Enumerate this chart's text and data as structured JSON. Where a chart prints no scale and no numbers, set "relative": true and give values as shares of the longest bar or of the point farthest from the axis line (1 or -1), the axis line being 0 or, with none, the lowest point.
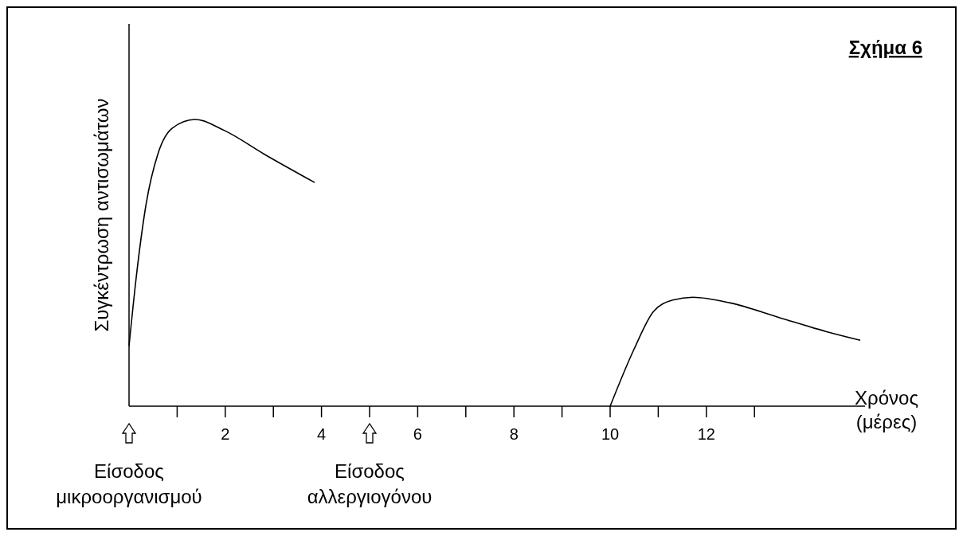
{
  "chart_data": {
    "type": "line",
    "title": "Σχήμα 6",
    "ylabel": "Συγκέντρωση αντισωμάτων",
    "xlabel": "Χρόνος (μέρες)",
    "relative": true,
    "xlim": [
      0,
      15.3
    ],
    "xticks": [
      {
        "value": 1,
        "label": null
      },
      2,
      {
        "value": 3,
        "label": null
      },
      4,
      {
        "value": 5,
        "label": null
      },
      6,
      {
        "value": 7,
        "label": null
      },
      8,
      {
        "value": 9,
        "label": null
      },
      10,
      {
        "value": 11,
        "label": null
      },
      12,
      {
        "value": 13,
        "label": null
      }
    ],
    "line_style": "solid",
    "series": [
      {
        "color": "#000000",
        "x": [
          0,
          0.15,
          0.35,
          0.6,
          0.9,
          1.37,
          2,
          2.8,
          3.86
        ],
        "values": [
          0.21,
          0.45,
          0.7,
          0.88,
          0.97,
          1.0,
          0.96,
          0.88,
          0.78
        ]
      },
      {
        "color": "#000000",
        "x": [
          10,
          10.5,
          10.9,
          11.3,
          11.72,
          12.5,
          13.5,
          14.5,
          15.2
        ],
        "values": [
          0,
          0.2,
          0.33,
          0.37,
          0.38,
          0.36,
          0.31,
          0.26,
          0.23
        ]
      }
    ],
    "annotations": [
      "Είσοδος μικροοργανισμού",
      "Είσοδος αλλεργιογόνου"
    ]
  }
}
